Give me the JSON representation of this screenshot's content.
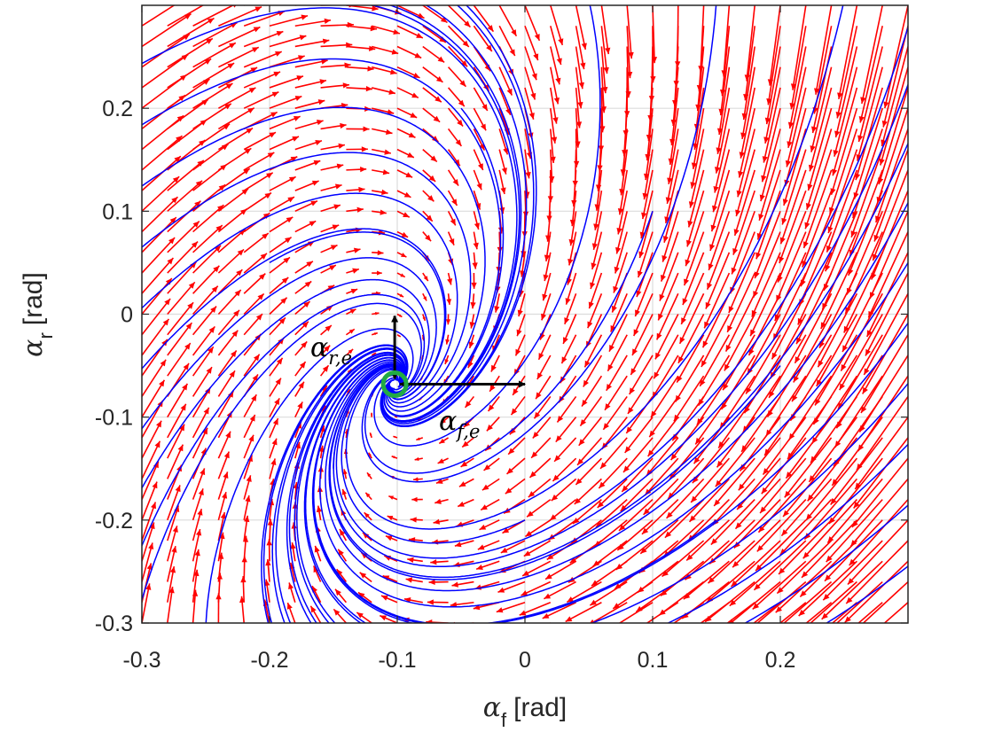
{
  "chart_data": {
    "type": "phase-portrait",
    "xlabel": {
      "symbol": "α",
      "subscript": "f",
      "unit": "[rad]"
    },
    "ylabel": {
      "symbol": "α",
      "subscript": "r",
      "unit": "[rad]"
    },
    "xlim": [
      -0.3,
      0.3
    ],
    "ylim": [
      -0.3,
      0.3
    ],
    "xticks": [
      -0.3,
      -0.2,
      -0.1,
      0,
      0.1,
      0.2
    ],
    "xtick_labels": [
      "-0.3",
      "-0.2",
      "-0.1",
      "0",
      "0.1",
      "0.2"
    ],
    "yticks": [
      -0.3,
      -0.2,
      -0.1,
      0,
      0.1,
      0.2
    ],
    "ytick_labels": [
      "-0.3",
      "-0.2",
      "-0.1",
      "0",
      "0.1",
      "0.2"
    ],
    "grid": true,
    "equilibrium": {
      "x": -0.102,
      "y": -0.068
    },
    "annotations": [
      {
        "id": "alpha-r-e",
        "symbol": "α",
        "subscript": "r,e"
      },
      {
        "id": "alpha-f-e",
        "symbol": "α",
        "subscript": "f,e"
      }
    ],
    "vector_field_color": "#ff0000",
    "trajectory_color": "#0000ff",
    "equilibrium_color": "#22aa44",
    "marker_color": "#000000"
  }
}
